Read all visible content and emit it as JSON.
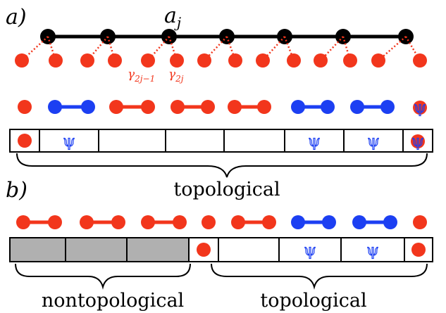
{
  "panel_a": {
    "label": "a)",
    "chain_site_label_base": "a",
    "chain_site_label_sub": "j",
    "majorana_label_1_base": "γ",
    "majorana_label_1_sub": "2j−1",
    "majorana_label_2_base": "γ",
    "majorana_label_2_sub": "2j",
    "pairing_row": [
      "single-red",
      "blue-pair",
      "red-pair",
      "red-pair",
      "red-pair",
      "blue-pair",
      "blue-pair",
      "psi-symbol"
    ],
    "cells": [
      "red-dot",
      "psi",
      "empty",
      "empty",
      "empty",
      "psi",
      "psi",
      "psi-red"
    ],
    "brace_label": "topological"
  },
  "panel_b": {
    "label": "b)",
    "pairing_row": [
      "red-pair",
      "red-pair",
      "red-pair",
      "single-red",
      "red-pair",
      "blue-pair",
      "blue-pair",
      "single-red"
    ],
    "cells": [
      "gray",
      "gray",
      "gray",
      "red-dot",
      "empty",
      "psi",
      "psi",
      "red-dot"
    ],
    "brace_left_label": "nontopological",
    "brace_right_label": "topological"
  },
  "psi_glyph": "ψ",
  "colors": {
    "red": "#f2361c",
    "blue": "#1c3ff2",
    "black": "#000000",
    "gray": "#b0b0b0"
  }
}
